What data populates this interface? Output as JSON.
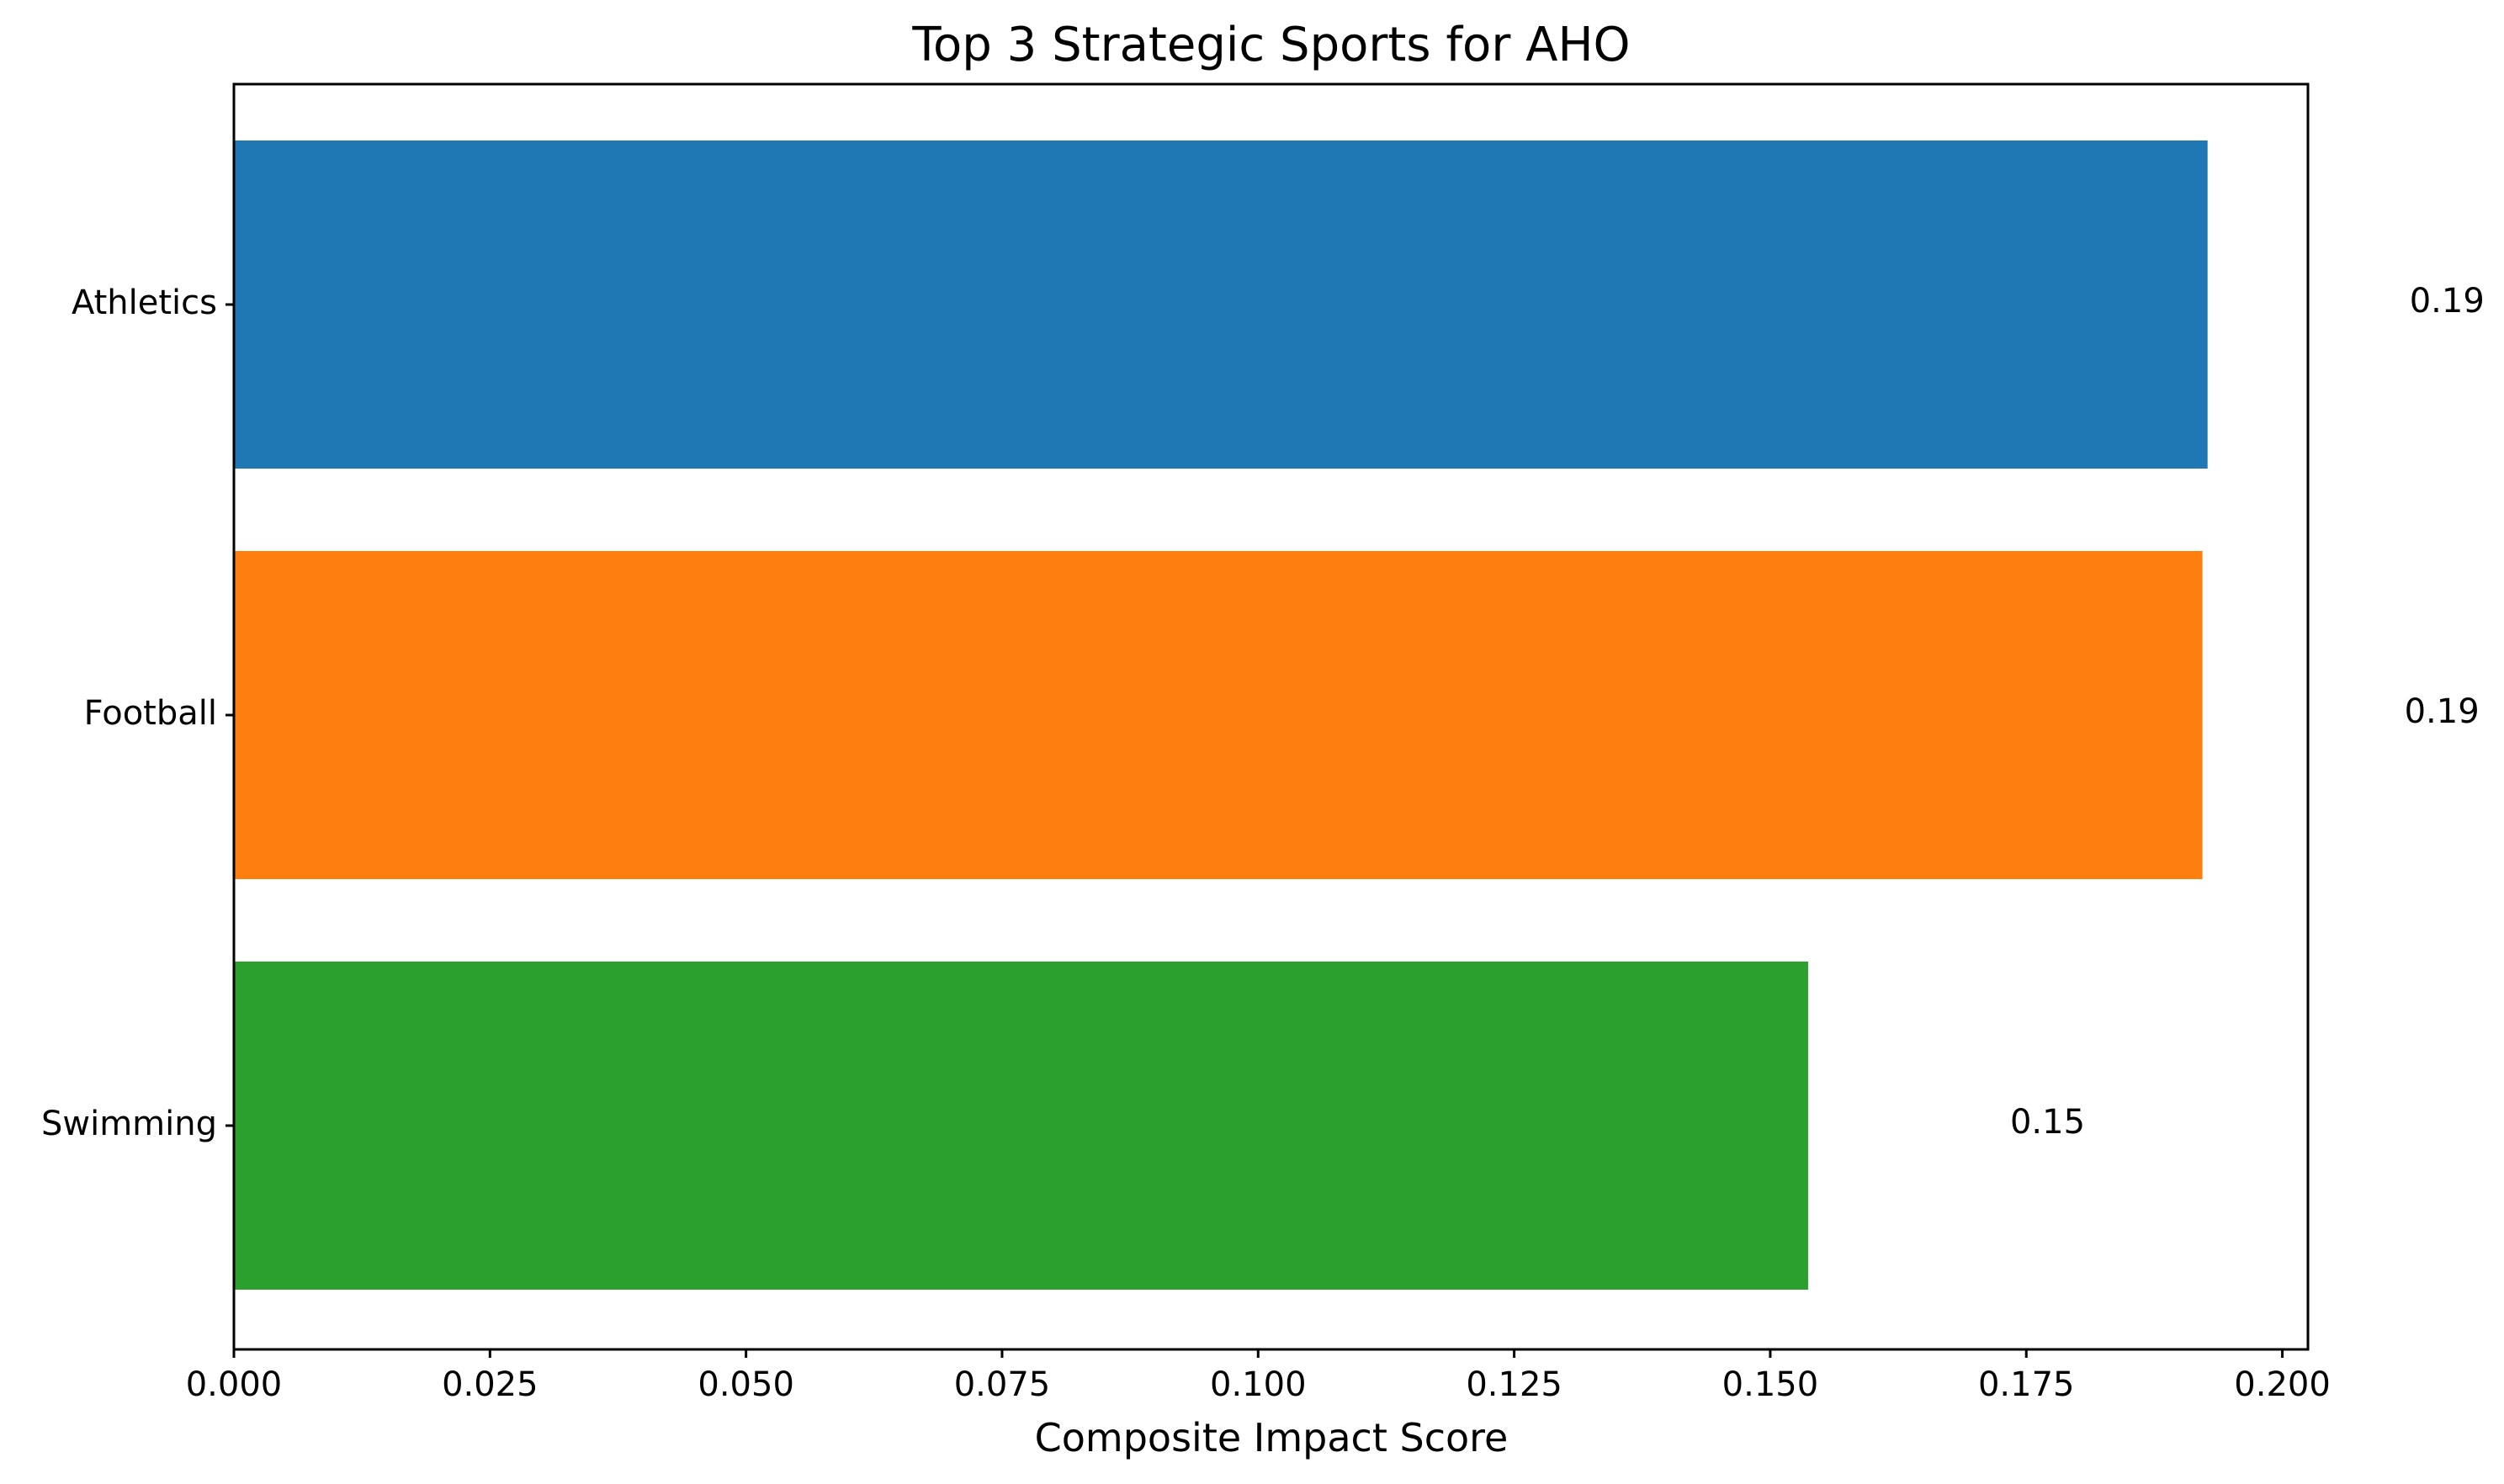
{
  "chart_data": {
    "type": "bar",
    "orientation": "horizontal",
    "title": "Top 3 Strategic Sports for AHO",
    "xlabel": "Composite Impact Score",
    "ylabel": "",
    "categories": [
      "Athletics",
      "Football",
      "Swimming"
    ],
    "values": [
      0.1927,
      0.1922,
      0.1537
    ],
    "value_labels": [
      "0.19",
      "0.19",
      "0.15"
    ],
    "colors": [
      "#1f77b4",
      "#ff7f0e",
      "#2ca02c"
    ],
    "xlim": [
      0,
      0.2025
    ],
    "xticks": [
      0.0,
      0.025,
      0.05,
      0.075,
      0.1,
      0.125,
      0.15,
      0.175,
      0.2
    ],
    "xtick_labels": [
      "0.000",
      "0.025",
      "0.050",
      "0.075",
      "0.100",
      "0.125",
      "0.150",
      "0.175",
      "0.200"
    ],
    "grid": false,
    "legend": "none"
  }
}
